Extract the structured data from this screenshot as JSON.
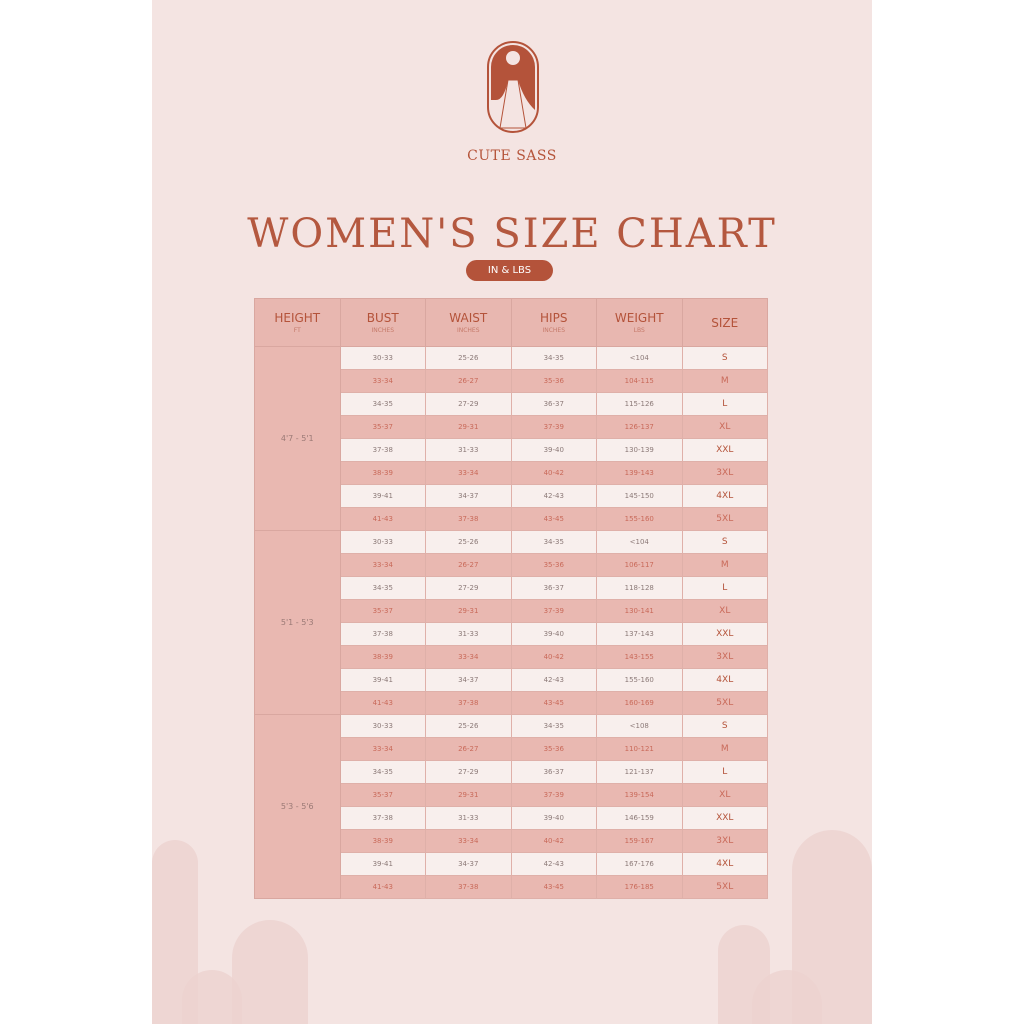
{
  "brand": {
    "name": "CUTE SASS"
  },
  "title": "WOMEN'S SIZE CHART",
  "unit_badge": "IN & LBS",
  "colors": {
    "accent": "#b4533a",
    "header": "#e8b7b0",
    "background": "#f4e4e2"
  },
  "table": {
    "headers": [
      {
        "label": "HEIGHT",
        "sub": "FT"
      },
      {
        "label": "BUST",
        "sub": "INCHES"
      },
      {
        "label": "WAIST",
        "sub": "INCHES"
      },
      {
        "label": "HIPS",
        "sub": "INCHES"
      },
      {
        "label": "WEIGHT",
        "sub": "LBS"
      },
      {
        "label": "SIZE",
        "sub": ""
      }
    ],
    "groups": [
      {
        "height": "4'7 - 5'1",
        "rows": [
          [
            "30-33",
            "25-26",
            "34-35",
            "<104",
            "S"
          ],
          [
            "33-34",
            "26-27",
            "35-36",
            "104-115",
            "M"
          ],
          [
            "34-35",
            "27-29",
            "36-37",
            "115-126",
            "L"
          ],
          [
            "35-37",
            "29-31",
            "37-39",
            "126-137",
            "XL"
          ],
          [
            "37-38",
            "31-33",
            "39-40",
            "130-139",
            "XXL"
          ],
          [
            "38-39",
            "33-34",
            "40-42",
            "139-143",
            "3XL"
          ],
          [
            "39-41",
            "34-37",
            "42-43",
            "145-150",
            "4XL"
          ],
          [
            "41-43",
            "37-38",
            "43-45",
            "155-160",
            "5XL"
          ]
        ]
      },
      {
        "height": "5'1 - 5'3",
        "rows": [
          [
            "30-33",
            "25-26",
            "34-35",
            "<104",
            "S"
          ],
          [
            "33-34",
            "26-27",
            "35-36",
            "106-117",
            "M"
          ],
          [
            "34-35",
            "27-29",
            "36-37",
            "118-128",
            "L"
          ],
          [
            "35-37",
            "29-31",
            "37-39",
            "130-141",
            "XL"
          ],
          [
            "37-38",
            "31-33",
            "39-40",
            "137-143",
            "XXL"
          ],
          [
            "38-39",
            "33-34",
            "40-42",
            "143-155",
            "3XL"
          ],
          [
            "39-41",
            "34-37",
            "42-43",
            "155-160",
            "4XL"
          ],
          [
            "41-43",
            "37-38",
            "43-45",
            "160-169",
            "5XL"
          ]
        ]
      },
      {
        "height": "5'3 - 5'6",
        "rows": [
          [
            "30-33",
            "25-26",
            "34-35",
            "<108",
            "S"
          ],
          [
            "33-34",
            "26-27",
            "35-36",
            "110-121",
            "M"
          ],
          [
            "34-35",
            "27-29",
            "36-37",
            "121-137",
            "L"
          ],
          [
            "35-37",
            "29-31",
            "37-39",
            "139-154",
            "XL"
          ],
          [
            "37-38",
            "31-33",
            "39-40",
            "146-159",
            "XXL"
          ],
          [
            "38-39",
            "33-34",
            "40-42",
            "159-167",
            "3XL"
          ],
          [
            "39-41",
            "34-37",
            "42-43",
            "167-176",
            "4XL"
          ],
          [
            "41-43",
            "37-38",
            "43-45",
            "176-185",
            "5XL"
          ]
        ]
      }
    ]
  }
}
